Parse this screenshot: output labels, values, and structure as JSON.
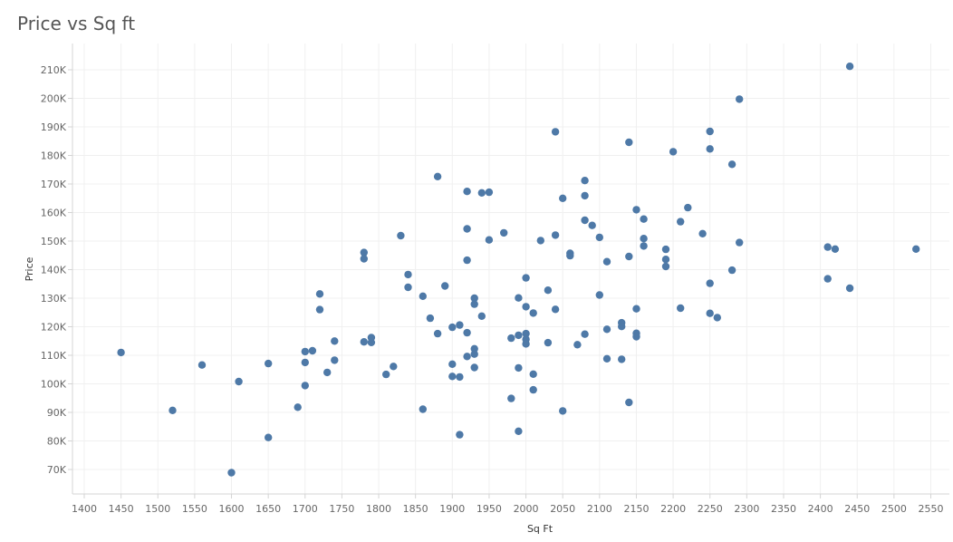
{
  "chart_data": {
    "type": "scatter",
    "title": "Price vs Sq ft",
    "xlabel": "Sq Ft",
    "ylabel": "Price",
    "xlim": [
      1390,
      2560
    ],
    "ylim": [
      62000,
      216000
    ],
    "xticks": [
      1400,
      1450,
      1500,
      1550,
      1600,
      1650,
      1700,
      1750,
      1800,
      1850,
      1900,
      1950,
      2000,
      2050,
      2100,
      2150,
      2200,
      2250,
      2300,
      2350,
      2400,
      2450,
      2500,
      2550
    ],
    "yticks": [
      70000,
      80000,
      90000,
      100000,
      110000,
      120000,
      130000,
      140000,
      150000,
      160000,
      170000,
      180000,
      190000,
      200000,
      210000
    ],
    "ytick_labels": [
      "70K",
      "80K",
      "90K",
      "100K",
      "110K",
      "120K",
      "130K",
      "140K",
      "150K",
      "160K",
      "170K",
      "180K",
      "190K",
      "200K",
      "210K"
    ],
    "grid": true,
    "marker_color": "#4e79a7",
    "points": [
      [
        1450,
        111000
      ],
      [
        1520,
        90700
      ],
      [
        1560,
        106600
      ],
      [
        1600,
        68900
      ],
      [
        1610,
        100800
      ],
      [
        1650,
        107100
      ],
      [
        1650,
        81200
      ],
      [
        1690,
        91800
      ],
      [
        1700,
        111300
      ],
      [
        1700,
        107500
      ],
      [
        1700,
        99400
      ],
      [
        1710,
        111600
      ],
      [
        1720,
        131500
      ],
      [
        1720,
        126000
      ],
      [
        1730,
        104000
      ],
      [
        1740,
        115000
      ],
      [
        1740,
        108300
      ],
      [
        1780,
        146000
      ],
      [
        1780,
        143800
      ],
      [
        1780,
        114700
      ],
      [
        1790,
        116200
      ],
      [
        1790,
        114500
      ],
      [
        1810,
        103300
      ],
      [
        1820,
        106100
      ],
      [
        1830,
        151900
      ],
      [
        1840,
        138300
      ],
      [
        1840,
        133800
      ],
      [
        1860,
        130700
      ],
      [
        1860,
        91100
      ],
      [
        1870,
        123000
      ],
      [
        1880,
        172600
      ],
      [
        1880,
        117600
      ],
      [
        1890,
        134300
      ],
      [
        1900,
        119800
      ],
      [
        1900,
        106900
      ],
      [
        1900,
        102600
      ],
      [
        1910,
        120600
      ],
      [
        1910,
        102400
      ],
      [
        1910,
        82200
      ],
      [
        1920,
        167400
      ],
      [
        1920,
        154300
      ],
      [
        1920,
        143300
      ],
      [
        1920,
        117900
      ],
      [
        1920,
        109600
      ],
      [
        1930,
        130000
      ],
      [
        1930,
        127900
      ],
      [
        1930,
        112300
      ],
      [
        1930,
        110400
      ],
      [
        1930,
        105700
      ],
      [
        1940,
        166900
      ],
      [
        1940,
        123700
      ],
      [
        1950,
        167100
      ],
      [
        1950,
        150400
      ],
      [
        1970,
        152900
      ],
      [
        1980,
        116000
      ],
      [
        1980,
        94900
      ],
      [
        1990,
        130100
      ],
      [
        1990,
        117000
      ],
      [
        1990,
        105600
      ],
      [
        1990,
        83400
      ],
      [
        2000,
        137100
      ],
      [
        2000,
        127000
      ],
      [
        2000,
        117600
      ],
      [
        2000,
        115600
      ],
      [
        2000,
        114000
      ],
      [
        2010,
        124800
      ],
      [
        2010,
        103400
      ],
      [
        2010,
        97900
      ],
      [
        2020,
        150200
      ],
      [
        2030,
        132800
      ],
      [
        2030,
        114400
      ],
      [
        2040,
        188300
      ],
      [
        2040,
        152100
      ],
      [
        2040,
        126100
      ],
      [
        2050,
        165000
      ],
      [
        2050,
        90500
      ],
      [
        2060,
        145700
      ],
      [
        2060,
        144900
      ],
      [
        2070,
        113700
      ],
      [
        2080,
        171200
      ],
      [
        2080,
        165900
      ],
      [
        2080,
        157300
      ],
      [
        2080,
        117400
      ],
      [
        2090,
        155500
      ],
      [
        2100,
        151300
      ],
      [
        2100,
        131100
      ],
      [
        2110,
        142800
      ],
      [
        2110,
        119100
      ],
      [
        2110,
        108800
      ],
      [
        2130,
        121400
      ],
      [
        2130,
        120100
      ],
      [
        2130,
        108600
      ],
      [
        2140,
        184600
      ],
      [
        2140,
        144600
      ],
      [
        2140,
        93500
      ],
      [
        2150,
        161000
      ],
      [
        2150,
        126300
      ],
      [
        2150,
        117700
      ],
      [
        2150,
        116500
      ],
      [
        2160,
        157700
      ],
      [
        2160,
        150900
      ],
      [
        2160,
        148300
      ],
      [
        2190,
        147100
      ],
      [
        2190,
        143600
      ],
      [
        2190,
        141100
      ],
      [
        2200,
        181300
      ],
      [
        2210,
        156800
      ],
      [
        2210,
        126500
      ],
      [
        2220,
        161700
      ],
      [
        2240,
        152600
      ],
      [
        2250,
        188400
      ],
      [
        2250,
        182300
      ],
      [
        2250,
        135200
      ],
      [
        2250,
        124700
      ],
      [
        2260,
        123200
      ],
      [
        2280,
        176900
      ],
      [
        2280,
        139800
      ],
      [
        2290,
        199700
      ],
      [
        2290,
        149500
      ],
      [
        2410,
        147900
      ],
      [
        2410,
        136800
      ],
      [
        2420,
        147200
      ],
      [
        2440,
        211200
      ],
      [
        2440,
        133500
      ],
      [
        2530,
        147200
      ]
    ]
  }
}
